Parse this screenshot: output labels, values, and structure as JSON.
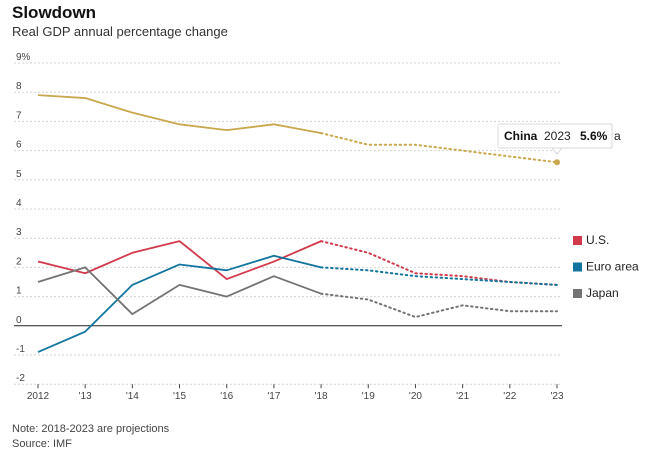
{
  "header": {
    "title": "Slowdown",
    "subtitle": "Real GDP annual percentage change"
  },
  "footer": {
    "note": "Note: 2018-2023 are projections",
    "source": "Source: IMF"
  },
  "tooltip": {
    "name": "China",
    "year": "2023",
    "value": "5.6%",
    "trailing": "a"
  },
  "chart_data": {
    "type": "line",
    "title": "Slowdown",
    "subtitle": "Real GDP annual percentage change",
    "x": [
      2012,
      2013,
      2014,
      2015,
      2016,
      2017,
      2018,
      2019,
      2020,
      2021,
      2022,
      2023
    ],
    "x_tick_labels": [
      "2012",
      "'13",
      "'14",
      "'15",
      "'16",
      "'17",
      "'18",
      "'19",
      "'20",
      "'21",
      "'22",
      "'23"
    ],
    "y_tick_labels": [
      "9%",
      "8",
      "7",
      "6",
      "5",
      "4",
      "3",
      "2",
      "1",
      "0",
      "-1",
      "-2"
    ],
    "ylim": [
      -2,
      9
    ],
    "grid": true,
    "legend_position": "right",
    "projection_start": 2018,
    "series": [
      {
        "name": "China",
        "color": "#c9a74d",
        "labeled_by": "tooltip",
        "values": [
          7.9,
          7.8,
          7.3,
          6.9,
          6.7,
          6.9,
          6.6,
          6.2,
          6.2,
          6.0,
          5.8,
          5.6
        ]
      },
      {
        "name": "U.S.",
        "color": "#d2394a",
        "labeled_by": "legend",
        "values": [
          2.2,
          1.8,
          2.5,
          2.9,
          1.6,
          2.2,
          2.9,
          2.5,
          1.8,
          1.7,
          1.5,
          1.4
        ]
      },
      {
        "name": "Euro area",
        "color": "#11759f",
        "labeled_by": "legend",
        "values": [
          -0.9,
          -0.2,
          1.4,
          2.1,
          1.9,
          2.4,
          2.0,
          1.9,
          1.7,
          1.6,
          1.5,
          1.4
        ]
      },
      {
        "name": "Japan",
        "color": "#737373",
        "labeled_by": "legend",
        "values": [
          1.5,
          2.0,
          0.4,
          1.4,
          1.0,
          1.7,
          1.1,
          0.9,
          0.3,
          0.7,
          0.5,
          0.5
        ]
      }
    ]
  }
}
